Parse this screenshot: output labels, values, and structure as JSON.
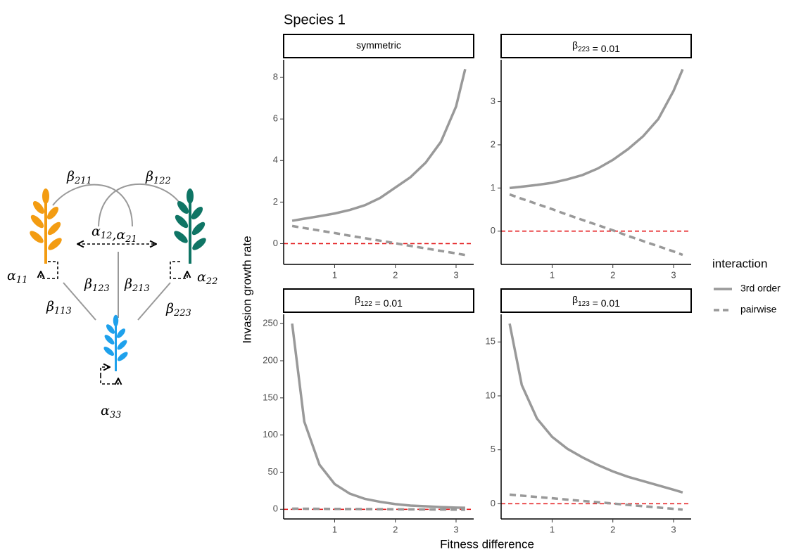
{
  "figure": {
    "title": "Species 1",
    "x_label": "Fitness difference",
    "y_label": "Invasion growth rate",
    "legend_title": "interaction"
  },
  "diagram": {
    "labels": [
      [
        {
          "text": "β",
          "sub": "211"
        }
      ],
      [
        {
          "text": "β",
          "sub": "122"
        }
      ],
      [
        {
          "text": "α",
          "sub": "12"
        },
        {
          "text": ",α",
          "sub": "21"
        }
      ],
      [
        {
          "text": "α",
          "sub": "11"
        }
      ],
      [
        {
          "text": "α",
          "sub": "22"
        }
      ],
      [
        {
          "text": "β",
          "sub": "123"
        }
      ],
      [
        {
          "text": "β",
          "sub": "213"
        }
      ],
      [
        {
          "text": "β",
          "sub": "113"
        }
      ],
      [
        {
          "text": "β",
          "sub": "223"
        }
      ],
      [
        {
          "text": "α",
          "sub": "33"
        }
      ]
    ]
  },
  "chart_data": [
    {
      "type": "line",
      "strip": [
        {
          "text": "symmetric"
        }
      ],
      "x": [
        0.3,
        0.5,
        0.75,
        1,
        1.25,
        1.5,
        1.75,
        2,
        2.25,
        2.5,
        2.75,
        3,
        3.15
      ],
      "series": [
        {
          "name": "3rd order",
          "color": "#999999",
          "linestyle": "solid",
          "values": [
            1.1,
            1.2,
            1.32,
            1.45,
            1.62,
            1.85,
            2.2,
            2.7,
            3.2,
            3.9,
            4.9,
            6.6,
            8.4
          ]
        },
        {
          "name": "pairwise",
          "color": "#999999",
          "linestyle": "dashed",
          "values": [
            0.85,
            0.75,
            0.63,
            0.51,
            0.38,
            0.26,
            0.14,
            0.02,
            -0.11,
            -0.23,
            -0.35,
            -0.47,
            -0.55
          ]
        }
      ],
      "hline": 0,
      "hline_color": "#e41a1c",
      "xlim": [
        0.16,
        3.29
      ],
      "xticks": [
        1,
        2,
        3
      ],
      "ylim": [
        -1.0,
        8.85
      ],
      "yticks": [
        0,
        2,
        4,
        6,
        8
      ]
    },
    {
      "type": "line",
      "strip": [
        {
          "text": "β",
          "sub": "223"
        },
        {
          "text": " = 0.01"
        }
      ],
      "x": [
        0.3,
        0.5,
        0.75,
        1,
        1.25,
        1.5,
        1.75,
        2,
        2.25,
        2.5,
        2.75,
        3,
        3.15
      ],
      "series": [
        {
          "name": "3rd order",
          "color": "#999999",
          "linestyle": "solid",
          "values": [
            1.0,
            1.03,
            1.07,
            1.12,
            1.2,
            1.3,
            1.45,
            1.65,
            1.9,
            2.2,
            2.6,
            3.25,
            3.75
          ]
        },
        {
          "name": "pairwise",
          "color": "#999999",
          "linestyle": "dashed",
          "values": [
            0.85,
            0.75,
            0.63,
            0.51,
            0.38,
            0.26,
            0.14,
            0.02,
            -0.11,
            -0.23,
            -0.35,
            -0.47,
            -0.55
          ]
        }
      ],
      "hline": 0,
      "hline_color": "#e41a1c",
      "xlim": [
        0.16,
        3.29
      ],
      "xticks": [
        1,
        2,
        3
      ],
      "ylim": [
        -0.77,
        3.97
      ],
      "yticks": [
        0,
        1,
        2,
        3
      ]
    },
    {
      "type": "line",
      "strip": [
        {
          "text": "β",
          "sub": "122"
        },
        {
          "text": " = 0.01"
        }
      ],
      "x": [
        0.3,
        0.5,
        0.75,
        1,
        1.25,
        1.5,
        1.75,
        2,
        2.25,
        2.5,
        2.75,
        3,
        3.15
      ],
      "series": [
        {
          "name": "3rd order",
          "color": "#999999",
          "linestyle": "solid",
          "values": [
            250,
            118,
            60,
            34,
            21,
            14,
            10,
            7,
            5,
            4,
            3,
            2.3,
            2
          ]
        },
        {
          "name": "pairwise",
          "color": "#999999",
          "linestyle": "dashed",
          "values": [
            0.85,
            0.75,
            0.63,
            0.51,
            0.38,
            0.26,
            0.14,
            0.02,
            -0.11,
            -0.23,
            -0.35,
            -0.47,
            -0.55
          ]
        }
      ],
      "hline": 0,
      "hline_color": "#e41a1c",
      "xlim": [
        0.16,
        3.29
      ],
      "xticks": [
        1,
        2,
        3
      ],
      "ylim": [
        -13,
        262.5
      ],
      "yticks": [
        0,
        50,
        100,
        150,
        200,
        250
      ]
    },
    {
      "type": "line",
      "strip": [
        {
          "text": "β",
          "sub": "123"
        },
        {
          "text": " = 0.01"
        }
      ],
      "x": [
        0.3,
        0.5,
        0.75,
        1,
        1.25,
        1.5,
        1.75,
        2,
        2.25,
        2.5,
        2.75,
        3,
        3.15
      ],
      "series": [
        {
          "name": "3rd order",
          "color": "#999999",
          "linestyle": "solid",
          "values": [
            16.7,
            11,
            7.9,
            6.2,
            5.1,
            4.3,
            3.6,
            3.0,
            2.5,
            2.1,
            1.7,
            1.3,
            1.05
          ]
        },
        {
          "name": "pairwise",
          "color": "#999999",
          "linestyle": "dashed",
          "values": [
            0.85,
            0.75,
            0.63,
            0.51,
            0.38,
            0.26,
            0.14,
            0.02,
            -0.11,
            -0.23,
            -0.35,
            -0.47,
            -0.55
          ]
        }
      ],
      "hline": 0,
      "hline_color": "#e41a1c",
      "xlim": [
        0.16,
        3.29
      ],
      "xticks": [
        1,
        2,
        3
      ],
      "ylim": [
        -1.41,
        17.56
      ],
      "yticks": [
        0,
        5,
        10,
        15
      ]
    }
  ]
}
